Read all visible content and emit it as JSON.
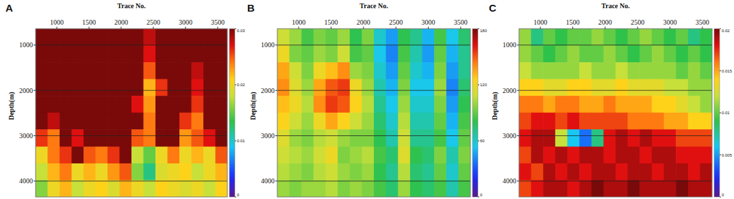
{
  "chart_data": [
    {
      "type": "heatmap",
      "title": "A",
      "x_label": "Trace No.",
      "y_label": "Depth(m)",
      "xlim": [
        670,
        3650
      ],
      "ylim": [
        640,
        4350
      ],
      "xticks": [
        1000,
        1500,
        2000,
        2500,
        3000,
        3500
      ],
      "yticks": [
        1000,
        2000,
        3000,
        4000
      ],
      "grid": true,
      "x_bins": [
        670,
        856,
        1043,
        1229,
        1415,
        1601,
        1788,
        1974,
        2160,
        2346,
        2533,
        2719,
        2905,
        3091,
        3278,
        3464,
        3650
      ],
      "y_bins": [
        640,
        1010,
        1380,
        1750,
        2120,
        2490,
        2860,
        3240,
        3610,
        3980,
        4350
      ],
      "values": [
        [
          0.03,
          0.03,
          0.03,
          0.03,
          0.03,
          0.03,
          0.03,
          0.03,
          0.03,
          0.028,
          0.03,
          0.03,
          0.03,
          0.03,
          0.03,
          0.03
        ],
        [
          0.03,
          0.03,
          0.03,
          0.03,
          0.03,
          0.03,
          0.03,
          0.03,
          0.03,
          0.027,
          0.03,
          0.03,
          0.03,
          0.03,
          0.03,
          0.03
        ],
        [
          0.03,
          0.03,
          0.03,
          0.03,
          0.03,
          0.03,
          0.03,
          0.03,
          0.03,
          0.025,
          0.03,
          0.03,
          0.03,
          0.028,
          0.03,
          0.03
        ],
        [
          0.03,
          0.03,
          0.03,
          0.03,
          0.03,
          0.03,
          0.03,
          0.03,
          0.03,
          0.022,
          0.026,
          0.03,
          0.03,
          0.027,
          0.03,
          0.03
        ],
        [
          0.03,
          0.03,
          0.03,
          0.03,
          0.03,
          0.03,
          0.03,
          0.03,
          0.027,
          0.023,
          0.03,
          0.03,
          0.03,
          0.026,
          0.03,
          0.03
        ],
        [
          0.03,
          0.028,
          0.03,
          0.03,
          0.03,
          0.03,
          0.03,
          0.03,
          0.03,
          0.024,
          0.03,
          0.03,
          0.026,
          0.024,
          0.03,
          0.03
        ],
        [
          0.026,
          0.024,
          0.03,
          0.027,
          0.03,
          0.03,
          0.03,
          0.03,
          0.025,
          0.024,
          0.03,
          0.03,
          0.023,
          0.025,
          0.027,
          0.03
        ],
        [
          0.02,
          0.024,
          0.026,
          0.03,
          0.025,
          0.024,
          0.026,
          0.03,
          0.018,
          0.015,
          0.02,
          0.024,
          0.02,
          0.022,
          0.02,
          0.025
        ],
        [
          0.018,
          0.022,
          0.024,
          0.02,
          0.022,
          0.02,
          0.023,
          0.025,
          0.016,
          0.012,
          0.019,
          0.02,
          0.021,
          0.018,
          0.02,
          0.022
        ],
        [
          0.016,
          0.02,
          0.022,
          0.018,
          0.02,
          0.021,
          0.019,
          0.022,
          0.02,
          0.018,
          0.021,
          0.02,
          0.019,
          0.02,
          0.018,
          0.021
        ]
      ],
      "colorbar": {
        "range": [
          0,
          0.03
        ],
        "ticks": [
          0,
          0.01,
          0.02,
          0.03
        ]
      }
    },
    {
      "type": "heatmap",
      "title": "B",
      "x_label": "Trace No.",
      "y_label": "Depth(m)",
      "xlim": [
        670,
        3650
      ],
      "ylim": [
        640,
        4350
      ],
      "xticks": [
        1000,
        1500,
        2000,
        2500,
        3000,
        3500
      ],
      "yticks": [
        1000,
        2000,
        3000,
        4000
      ],
      "grid": true,
      "x_bins": [
        670,
        856,
        1043,
        1229,
        1415,
        1601,
        1788,
        1974,
        2160,
        2346,
        2533,
        2719,
        2905,
        3091,
        3278,
        3464,
        3650
      ],
      "y_bins": [
        640,
        1010,
        1380,
        1750,
        2120,
        2490,
        2860,
        3240,
        3610,
        3980,
        4350
      ],
      "values": [
        [
          110,
          100,
          85,
          95,
          90,
          100,
          80,
          95,
          60,
          45,
          80,
          70,
          50,
          85,
          55,
          75
        ],
        [
          120,
          95,
          90,
          100,
          95,
          110,
          85,
          90,
          55,
          40,
          85,
          65,
          45,
          90,
          50,
          70
        ],
        [
          135,
          110,
          95,
          120,
          130,
          140,
          100,
          95,
          60,
          45,
          90,
          60,
          50,
          95,
          45,
          70
        ],
        [
          140,
          115,
          100,
          135,
          150,
          155,
          120,
          100,
          65,
          50,
          95,
          55,
          55,
          100,
          40,
          75
        ],
        [
          130,
          120,
          105,
          140,
          155,
          150,
          125,
          105,
          70,
          55,
          100,
          60,
          60,
          95,
          45,
          80
        ],
        [
          125,
          110,
          100,
          120,
          135,
          125,
          110,
          100,
          75,
          60,
          105,
          65,
          65,
          90,
          50,
          85
        ],
        [
          115,
          100,
          95,
          105,
          110,
          100,
          95,
          95,
          80,
          65,
          110,
          70,
          70,
          85,
          55,
          90
        ],
        [
          110,
          105,
          100,
          110,
          120,
          95,
          100,
          105,
          85,
          75,
          115,
          80,
          75,
          95,
          65,
          95
        ],
        [
          105,
          100,
          95,
          105,
          110,
          100,
          95,
          100,
          80,
          70,
          105,
          75,
          70,
          90,
          60,
          90
        ],
        [
          100,
          95,
          100,
          100,
          105,
          95,
          100,
          95,
          85,
          75,
          100,
          80,
          75,
          85,
          65,
          85
        ]
      ],
      "colorbar": {
        "range": [
          0,
          180
        ],
        "ticks": [
          0,
          60,
          120,
          180
        ]
      }
    },
    {
      "type": "heatmap",
      "title": "C",
      "x_label": "Trace No.",
      "y_label": "Depth(m)",
      "xlim": [
        670,
        3650
      ],
      "ylim": [
        640,
        4350
      ],
      "xticks": [
        1000,
        1500,
        2000,
        2500,
        3000,
        3500
      ],
      "yticks": [
        1000,
        2000,
        3000,
        4000
      ],
      "grid": true,
      "x_bins": [
        670,
        856,
        1043,
        1229,
        1415,
        1601,
        1788,
        1974,
        2160,
        2346,
        2533,
        2719,
        2905,
        3091,
        3278,
        3464,
        3650
      ],
      "y_bins": [
        640,
        1010,
        1380,
        1750,
        2120,
        2490,
        2860,
        3240,
        3610,
        3980,
        4350
      ],
      "values": [
        [
          0.011,
          0.008,
          0.01,
          0.009,
          0.01,
          0.01,
          0.011,
          0.01,
          0.009,
          0.01,
          0.011,
          0.01,
          0.009,
          0.01,
          0.008,
          0.009
        ],
        [
          0.011,
          0.01,
          0.009,
          0.01,
          0.011,
          0.01,
          0.01,
          0.011,
          0.01,
          0.009,
          0.01,
          0.011,
          0.01,
          0.009,
          0.01,
          0.009
        ],
        [
          0.012,
          0.011,
          0.011,
          0.011,
          0.011,
          0.012,
          0.011,
          0.011,
          0.012,
          0.011,
          0.011,
          0.011,
          0.011,
          0.01,
          0.011,
          0.01
        ],
        [
          0.014,
          0.014,
          0.013,
          0.013,
          0.014,
          0.014,
          0.013,
          0.013,
          0.014,
          0.013,
          0.013,
          0.013,
          0.012,
          0.012,
          0.011,
          0.011
        ],
        [
          0.016,
          0.016,
          0.015,
          0.016,
          0.016,
          0.015,
          0.015,
          0.016,
          0.015,
          0.015,
          0.015,
          0.014,
          0.014,
          0.013,
          0.012,
          0.011
        ],
        [
          0.017,
          0.018,
          0.018,
          0.017,
          0.018,
          0.017,
          0.017,
          0.017,
          0.017,
          0.016,
          0.016,
          0.016,
          0.015,
          0.015,
          0.014,
          0.014
        ],
        [
          0.018,
          0.019,
          0.019,
          0.012,
          0.006,
          0.004,
          0.008,
          0.018,
          0.019,
          0.018,
          0.019,
          0.018,
          0.018,
          0.017,
          0.017,
          0.017
        ],
        [
          0.017,
          0.019,
          0.018,
          0.019,
          0.018,
          0.019,
          0.019,
          0.018,
          0.019,
          0.019,
          0.018,
          0.019,
          0.019,
          0.018,
          0.018,
          0.018
        ],
        [
          0.018,
          0.017,
          0.019,
          0.018,
          0.019,
          0.018,
          0.019,
          0.019,
          0.018,
          0.019,
          0.019,
          0.018,
          0.019,
          0.019,
          0.018,
          0.019
        ],
        [
          0.017,
          0.018,
          0.019,
          0.019,
          0.018,
          0.019,
          0.02,
          0.019,
          0.019,
          0.02,
          0.019,
          0.019,
          0.019,
          0.02,
          0.019,
          0.019
        ]
      ],
      "colorbar": {
        "range": [
          0,
          0.02
        ],
        "ticks": [
          0,
          0.005,
          0.01,
          0.015,
          0.02
        ]
      }
    }
  ]
}
